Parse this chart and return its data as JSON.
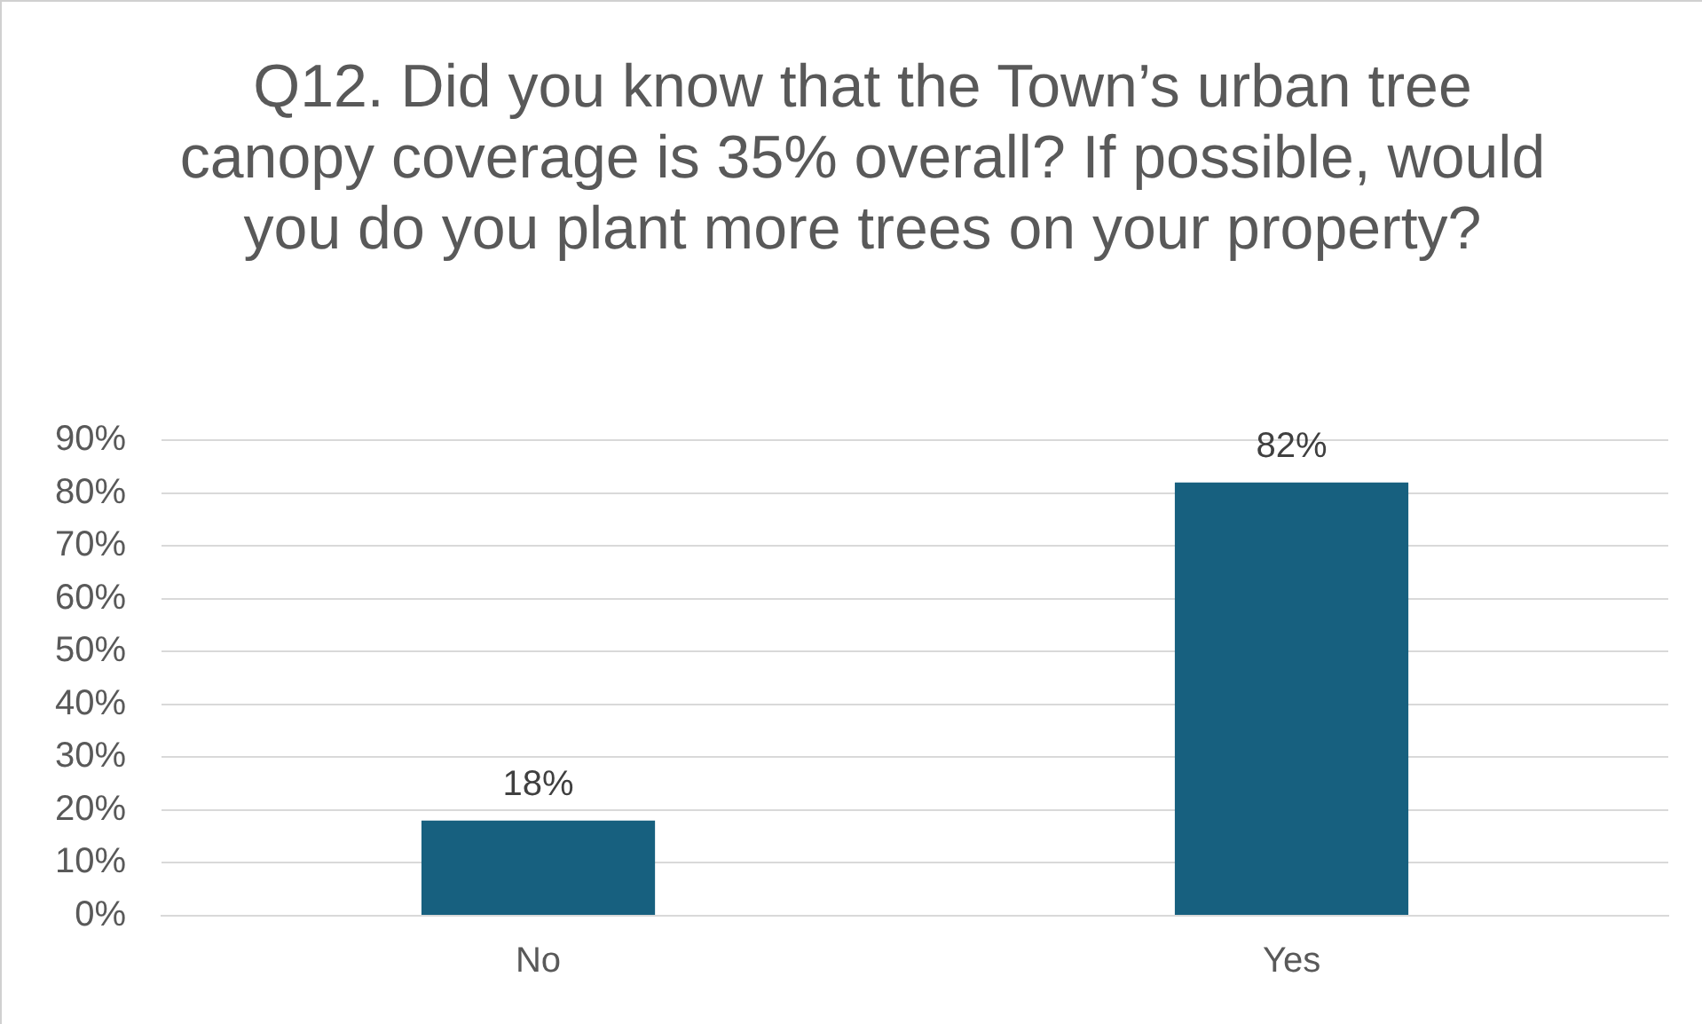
{
  "chart_data": {
    "type": "bar",
    "title": "Q12. Did you know that the Town’s urban tree canopy coverage is 35% overall? If possible, would you do you plant more trees on your property?",
    "categories": [
      "No",
      "Yes"
    ],
    "values": [
      18,
      82
    ],
    "value_labels": [
      "18%",
      "82%"
    ],
    "color": "#17607f",
    "ylim": [
      0,
      90
    ],
    "yticks": [
      {
        "value": 0,
        "label": "0%"
      },
      {
        "value": 10,
        "label": "10%"
      },
      {
        "value": 20,
        "label": "20%"
      },
      {
        "value": 30,
        "label": "30%"
      },
      {
        "value": 40,
        "label": "40%"
      },
      {
        "value": 50,
        "label": "50%"
      },
      {
        "value": 60,
        "label": "60%"
      },
      {
        "value": 70,
        "label": "70%"
      },
      {
        "value": 80,
        "label": "80%"
      },
      {
        "value": 90,
        "label": "90%"
      }
    ],
    "grid": "y",
    "legend": false
  }
}
